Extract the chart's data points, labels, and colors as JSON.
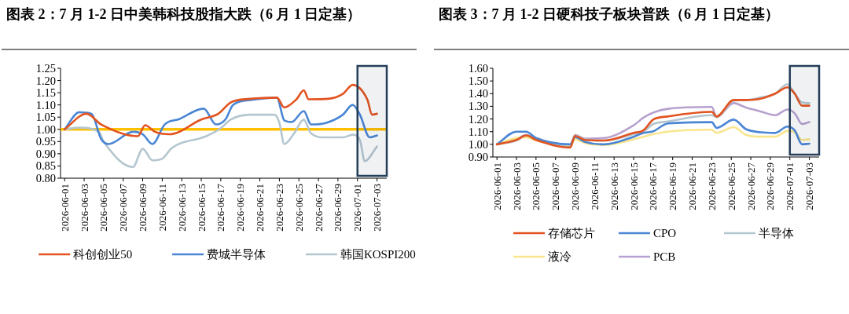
{
  "chart_data": [
    {
      "type": "line",
      "title": "图表 2：7 月 1-2 日中美韩科技股指大跌（6 月 1 日定基）",
      "legend": "bottom",
      "xlim": [
        "2026-05-31T14:00",
        "2026-07-04"
      ],
      "xticks": [
        "2026-06-01",
        "2026-06-03",
        "2026-06-05",
        "2026-06-07",
        "2026-06-09",
        "2026-06-11",
        "2026-06-13",
        "2026-06-15",
        "2026-06-17",
        "2026-06-19",
        "2026-06-21",
        "2026-06-23",
        "2026-06-25",
        "2026-06-27",
        "2026-06-29",
        "2026-07-01",
        "2026-07-03"
      ],
      "ylim": [
        0.8,
        1.25
      ],
      "yticks": [
        {
          "value": 0.8,
          "label": "0.80"
        },
        {
          "value": 0.85,
          "label": "0.85"
        },
        {
          "value": 0.9,
          "label": "0.90"
        },
        {
          "value": 0.95,
          "label": "0.95"
        },
        {
          "value": 1.0,
          "label": "1.00"
        },
        {
          "value": 1.05,
          "label": "1.05"
        },
        {
          "value": 1.1,
          "label": "1.10"
        },
        {
          "value": 1.15,
          "label": "1.15"
        },
        {
          "value": 1.2,
          "label": "1.20"
        },
        {
          "value": 1.25,
          "label": "1.25"
        }
      ],
      "ref_lines": [
        {
          "axis": "y",
          "value": 1.0,
          "color": "#ffc000"
        }
      ],
      "bands": [
        {
          "axis": "x",
          "from": "2026-07-01",
          "to": "2026-07-04",
          "color": "#243f5a"
        }
      ],
      "series": [
        {
          "name": "科创创业50",
          "color": "#e2531f",
          "x": [
            "2026-06-01",
            "2026-06-03T06:00",
            "2026-06-04T18:00",
            "2026-06-08T12:00",
            "2026-06-09T06:00",
            "2026-06-10T06:00",
            "2026-06-11T18:00",
            "2026-06-15",
            "2026-06-16T18:00",
            "2026-06-18",
            "2026-06-20",
            "2026-06-22T18:00",
            "2026-06-23T12:00",
            "2026-06-24T18:00",
            "2026-06-25T12:00",
            "2026-06-26",
            "2026-06-28",
            "2026-06-29T12:00",
            "2026-06-30T12:00",
            "2026-07-02",
            "2026-07-02T12:00",
            "2026-07-03"
          ],
          "values": [
            1.0,
            1.064,
            1.02,
            0.972,
            1.017,
            0.99,
            0.98,
            1.04,
            1.064,
            1.11,
            1.125,
            1.13,
            1.09,
            1.123,
            1.16,
            1.123,
            1.125,
            1.145,
            1.182,
            1.123,
            1.06,
            1.064
          ]
        },
        {
          "name": "费城半导体",
          "color": "#4a86d4",
          "x": [
            "2026-06-01",
            "2026-06-02T12:00",
            "2026-06-03T18:00",
            "2026-06-04T18:00",
            "2026-06-05T12:00",
            "2026-06-08",
            "2026-06-09",
            "2026-06-10",
            "2026-06-11T06:00",
            "2026-06-12T18:00",
            "2026-06-15T06:00",
            "2026-06-16T12:00",
            "2026-06-17T12:00",
            "2026-06-18T06:00",
            "2026-06-20",
            "2026-06-22T18:00",
            "2026-06-23T12:00",
            "2026-06-24T06:00",
            "2026-06-25T12:00",
            "2026-06-26T06:00",
            "2026-06-27T18:00",
            "2026-06-29T12:00",
            "2026-06-30T12:00",
            "2026-07-01T06:00",
            "2026-07-02T06:00",
            "2026-07-03"
          ],
          "values": [
            1.0,
            1.07,
            1.064,
            0.96,
            0.94,
            0.99,
            0.98,
            0.94,
            1.02,
            1.042,
            1.085,
            1.02,
            1.042,
            1.1,
            1.12,
            1.13,
            1.037,
            1.03,
            1.075,
            1.02,
            1.026,
            1.06,
            1.1,
            1.06,
            0.967,
            0.975
          ]
        },
        {
          "name": "韩国KOSPI200",
          "color": "#b4c6cf",
          "x": [
            "2026-06-01",
            "2026-06-02T12:00",
            "2026-06-04T12:00",
            "2026-06-05",
            "2026-06-08",
            "2026-06-09",
            "2026-06-10",
            "2026-06-11",
            "2026-06-12",
            "2026-06-15T12:00",
            "2026-06-17",
            "2026-06-18",
            "2026-06-20",
            "2026-06-22T12:00",
            "2026-06-23",
            "2026-06-23T12:00",
            "2026-06-24T12:00",
            "2026-06-25T12:00",
            "2026-06-26T06:00",
            "2026-06-27T18:00",
            "2026-06-29T12:00",
            "2026-06-30T12:00",
            "2026-07-01T06:00",
            "2026-07-01T18:00",
            "2026-07-03"
          ],
          "values": [
            1.0,
            1.007,
            0.99,
            0.95,
            0.846,
            0.92,
            0.873,
            0.88,
            0.924,
            0.972,
            1.005,
            1.04,
            1.06,
            1.06,
            1.027,
            0.94,
            0.983,
            1.04,
            0.983,
            0.967,
            0.967,
            0.978,
            0.956,
            0.87,
            0.93
          ]
        }
      ]
    },
    {
      "type": "line",
      "title": "图表 3：7 月 1-2 日硬科技子板块普跌（6 月 1 日定基）",
      "legend": "bottom",
      "xlim": [
        "2026-05-31T14:00",
        "2026-07-04"
      ],
      "xticks": [
        "2026-06-01",
        "2026-06-03",
        "2026-06-05",
        "2026-06-07",
        "2026-06-09",
        "2026-06-11",
        "2026-06-13",
        "2026-06-15",
        "2026-06-17",
        "2026-06-19",
        "2026-06-21",
        "2026-06-23",
        "2026-06-25",
        "2026-06-27",
        "2026-06-29",
        "2026-07-01",
        "2026-07-03"
      ],
      "ylim": [
        0.9,
        1.6
      ],
      "yticks": [
        {
          "value": 0.9,
          "label": "0.90"
        },
        {
          "value": 1.0,
          "label": "1.00"
        },
        {
          "value": 1.1,
          "label": "1.10"
        },
        {
          "value": 1.2,
          "label": "1.20"
        },
        {
          "value": 1.3,
          "label": "1.30"
        },
        {
          "value": 1.4,
          "label": "1.40"
        },
        {
          "value": 1.5,
          "label": "1.50"
        },
        {
          "value": 1.6,
          "label": "1.60"
        }
      ],
      "bands": [
        {
          "axis": "x",
          "from": "2026-07-01",
          "to": "2026-07-04",
          "color": "#243f5a"
        }
      ],
      "x": [
        "2026-06-01",
        "2026-06-03",
        "2026-06-04",
        "2026-06-05",
        "2026-06-08T12:00",
        "2026-06-09",
        "2026-06-10",
        "2026-06-12",
        "2026-06-15",
        "2026-06-16",
        "2026-06-17",
        "2026-06-18T12:00",
        "2026-06-23",
        "2026-06-23T12:00",
        "2026-06-25T06:00",
        "2026-06-26T12:00",
        "2026-06-28",
        "2026-06-29T12:00",
        "2026-06-30T18:00",
        "2026-07-01T12:00",
        "2026-07-02T06:00",
        "2026-07-03"
      ],
      "series": [
        {
          "name": "存储芯片",
          "color": "#e2531f",
          "values": [
            1.0,
            1.035,
            1.07,
            1.035,
            0.975,
            1.066,
            1.035,
            1.03,
            1.09,
            1.11,
            1.195,
            1.22,
            1.256,
            1.22,
            1.35,
            1.35,
            1.36,
            1.4,
            1.45,
            1.4,
            1.305,
            1.305
          ]
        },
        {
          "name": "CPO",
          "color": "#4a86d4",
          "values": [
            1.0,
            1.1,
            1.1,
            1.05,
            1.0,
            1.056,
            1.02,
            1.0,
            1.06,
            1.09,
            1.103,
            1.165,
            1.175,
            1.13,
            1.195,
            1.12,
            1.095,
            1.09,
            1.14,
            1.11,
            1.0,
            1.005
          ]
        },
        {
          "name": "半导体",
          "color": "#b4c6cf",
          "values": [
            1.0,
            1.03,
            1.07,
            1.04,
            0.98,
            1.07,
            1.04,
            1.03,
            1.08,
            1.1,
            1.16,
            1.18,
            1.23,
            1.215,
            1.345,
            1.35,
            1.37,
            1.4,
            1.475,
            1.4,
            1.33,
            1.325
          ]
        },
        {
          "name": "液冷",
          "color": "#f8e58c",
          "values": [
            1.0,
            1.05,
            1.055,
            1.03,
            0.99,
            1.04,
            1.01,
            0.995,
            1.04,
            1.06,
            1.08,
            1.1,
            1.115,
            1.09,
            1.135,
            1.075,
            1.06,
            1.06,
            1.105,
            1.095,
            1.035,
            1.04
          ]
        },
        {
          "name": "PCB",
          "color": "#b6a1cf",
          "values": [
            1.0,
            1.04,
            1.075,
            1.045,
            0.99,
            1.075,
            1.045,
            1.05,
            1.15,
            1.21,
            1.25,
            1.28,
            1.295,
            1.215,
            1.325,
            1.29,
            1.26,
            1.23,
            1.275,
            1.245,
            1.16,
            1.175
          ]
        }
      ]
    }
  ]
}
